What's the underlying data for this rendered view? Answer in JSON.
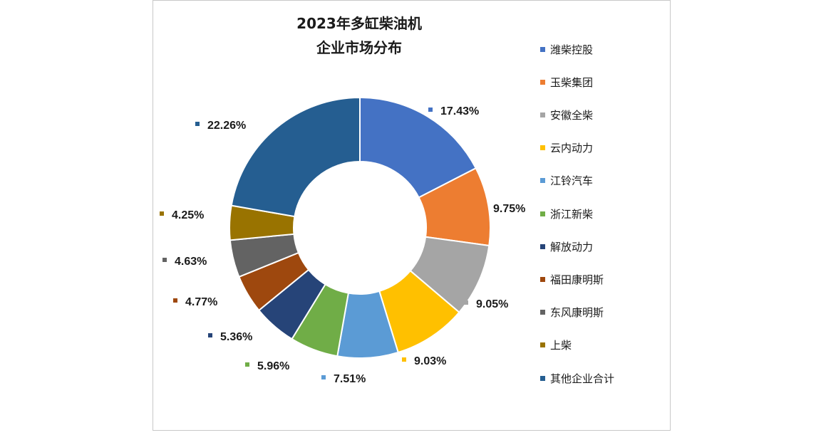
{
  "chart_data": {
    "type": "pie",
    "donut": true,
    "title": [
      "2023年多缸柴油机",
      "企业市场分布"
    ],
    "legend_position": "right",
    "categories": [
      "潍柴控股",
      "玉柴集团",
      "安徽全柴",
      "云内动力",
      "江铃汽车",
      "浙江新柴",
      "解放动力",
      "福田康明斯",
      "东风康明斯",
      "上柴",
      "其他企业合计"
    ],
    "values": [
      17.43,
      9.75,
      9.05,
      9.03,
      7.51,
      5.96,
      5.36,
      4.77,
      4.63,
      4.25,
      22.26
    ],
    "labels": [
      "17.43%",
      "9.75%",
      "9.05%",
      "9.03%",
      "7.51%",
      "5.96%",
      "5.36%",
      "4.77%",
      "4.63%",
      "4.25%",
      "22.26%"
    ],
    "colors": [
      "#4472c4",
      "#ed7d31",
      "#a5a5a5",
      "#ffc000",
      "#5b9bd5",
      "#70ad47",
      "#264478",
      "#9e480e",
      "#636363",
      "#997300",
      "#255e91"
    ]
  }
}
